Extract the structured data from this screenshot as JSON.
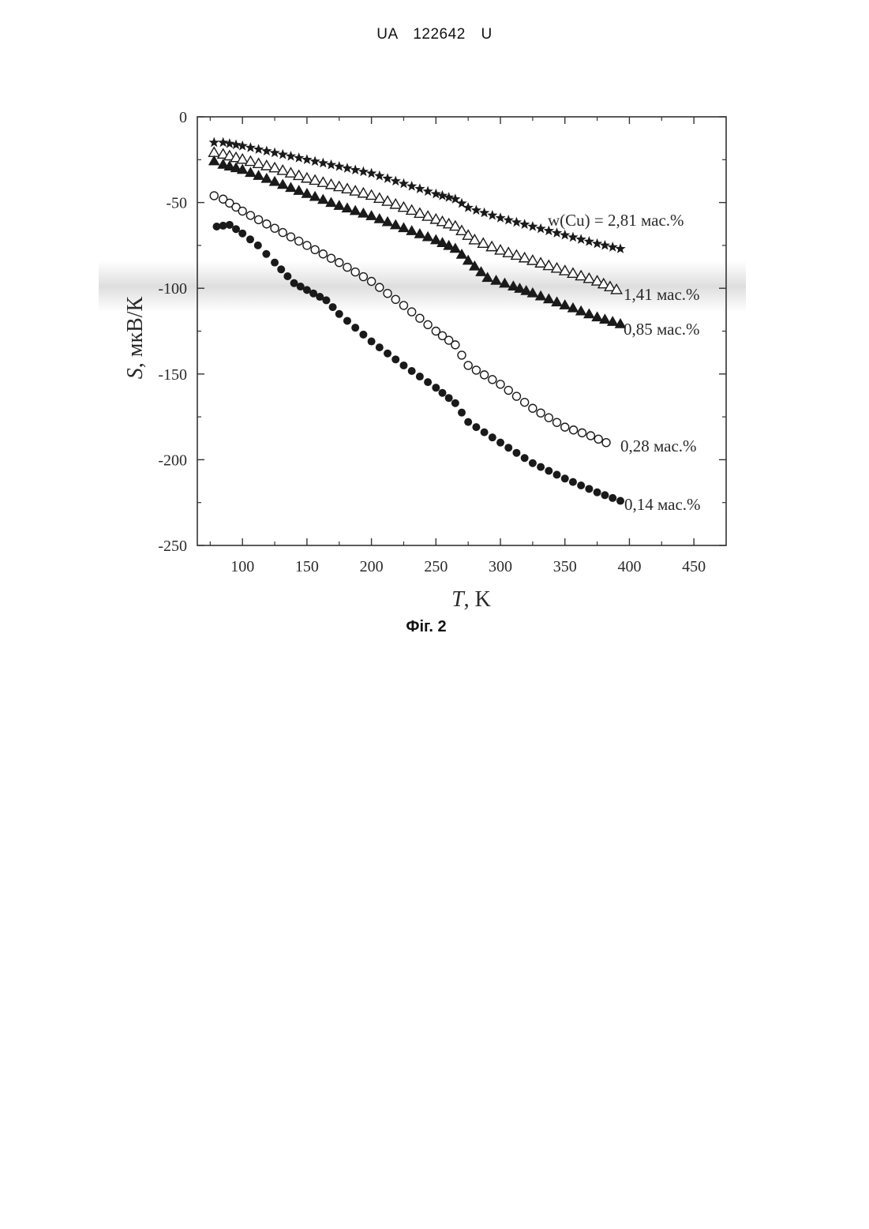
{
  "document": {
    "header": "UA 122642 U",
    "caption": "Фіг. 2"
  },
  "chart_data": {
    "type": "scatter",
    "xlabel_var": "T",
    "xlabel_unit": ", K",
    "ylabel_var": "S",
    "ylabel_unit": ", мкВ/К",
    "xlim": [
      65,
      475
    ],
    "ylim": [
      -250,
      0
    ],
    "xticks": [
      100,
      150,
      200,
      250,
      300,
      350,
      400,
      450
    ],
    "yticks": [
      0,
      -50,
      -100,
      -150,
      -200,
      -250
    ],
    "grid": false,
    "series": [
      {
        "name": "w(Cu) = 2,81 мас.%",
        "marker": "star",
        "color": "#1a1a1a",
        "points": [
          [
            78,
            -15
          ],
          [
            85,
            -15
          ],
          [
            100,
            -17
          ],
          [
            125,
            -21
          ],
          [
            150,
            -25
          ],
          [
            175,
            -29
          ],
          [
            200,
            -33
          ],
          [
            225,
            -39
          ],
          [
            250,
            -45
          ],
          [
            265,
            -48
          ],
          [
            275,
            -53
          ],
          [
            300,
            -59
          ],
          [
            325,
            -64
          ],
          [
            350,
            -69
          ],
          [
            375,
            -74
          ],
          [
            393,
            -77
          ]
        ]
      },
      {
        "name": "1,41 мас.%",
        "marker": "triangle-open",
        "color": "#1a1a1a",
        "points": [
          [
            78,
            -21
          ],
          [
            85,
            -22
          ],
          [
            100,
            -25
          ],
          [
            125,
            -30
          ],
          [
            150,
            -36
          ],
          [
            175,
            -41
          ],
          [
            200,
            -46
          ],
          [
            225,
            -53
          ],
          [
            250,
            -60
          ],
          [
            265,
            -64
          ],
          [
            280,
            -72
          ],
          [
            300,
            -78
          ],
          [
            325,
            -84
          ],
          [
            350,
            -90
          ],
          [
            375,
            -96
          ],
          [
            390,
            -101
          ]
        ]
      },
      {
        "name": "0,85 мас.%",
        "marker": "triangle-filled",
        "color": "#1a1a1a",
        "points": [
          [
            78,
            -26
          ],
          [
            85,
            -28
          ],
          [
            100,
            -31
          ],
          [
            125,
            -38
          ],
          [
            150,
            -45
          ],
          [
            175,
            -52
          ],
          [
            200,
            -58
          ],
          [
            225,
            -65
          ],
          [
            250,
            -72
          ],
          [
            265,
            -77
          ],
          [
            275,
            -84
          ],
          [
            290,
            -94
          ],
          [
            310,
            -99
          ],
          [
            325,
            -103
          ],
          [
            350,
            -110
          ],
          [
            375,
            -117
          ],
          [
            393,
            -121
          ]
        ]
      },
      {
        "name": "0,28 мас.%",
        "marker": "circle-open",
        "color": "#1a1a1a",
        "points": [
          [
            78,
            -46
          ],
          [
            85,
            -48
          ],
          [
            100,
            -55
          ],
          [
            125,
            -65
          ],
          [
            150,
            -75
          ],
          [
            175,
            -85
          ],
          [
            200,
            -96
          ],
          [
            225,
            -110
          ],
          [
            250,
            -125
          ],
          [
            265,
            -133
          ],
          [
            275,
            -145
          ],
          [
            300,
            -156
          ],
          [
            325,
            -170
          ],
          [
            350,
            -181
          ],
          [
            370,
            -186
          ],
          [
            382,
            -190
          ]
        ]
      },
      {
        "name": "0,14 мас.%",
        "marker": "circle-filled",
        "color": "#1a1a1a",
        "points": [
          [
            80,
            -64
          ],
          [
            90,
            -63
          ],
          [
            100,
            -68
          ],
          [
            112,
            -75
          ],
          [
            125,
            -85
          ],
          [
            140,
            -97
          ],
          [
            150,
            -101
          ],
          [
            165,
            -107
          ],
          [
            175,
            -115
          ],
          [
            200,
            -131
          ],
          [
            225,
            -145
          ],
          [
            250,
            -158
          ],
          [
            265,
            -167
          ],
          [
            275,
            -178
          ],
          [
            300,
            -190
          ],
          [
            325,
            -202
          ],
          [
            350,
            -211
          ],
          [
            375,
            -219
          ],
          [
            393,
            -224
          ]
        ]
      }
    ]
  }
}
